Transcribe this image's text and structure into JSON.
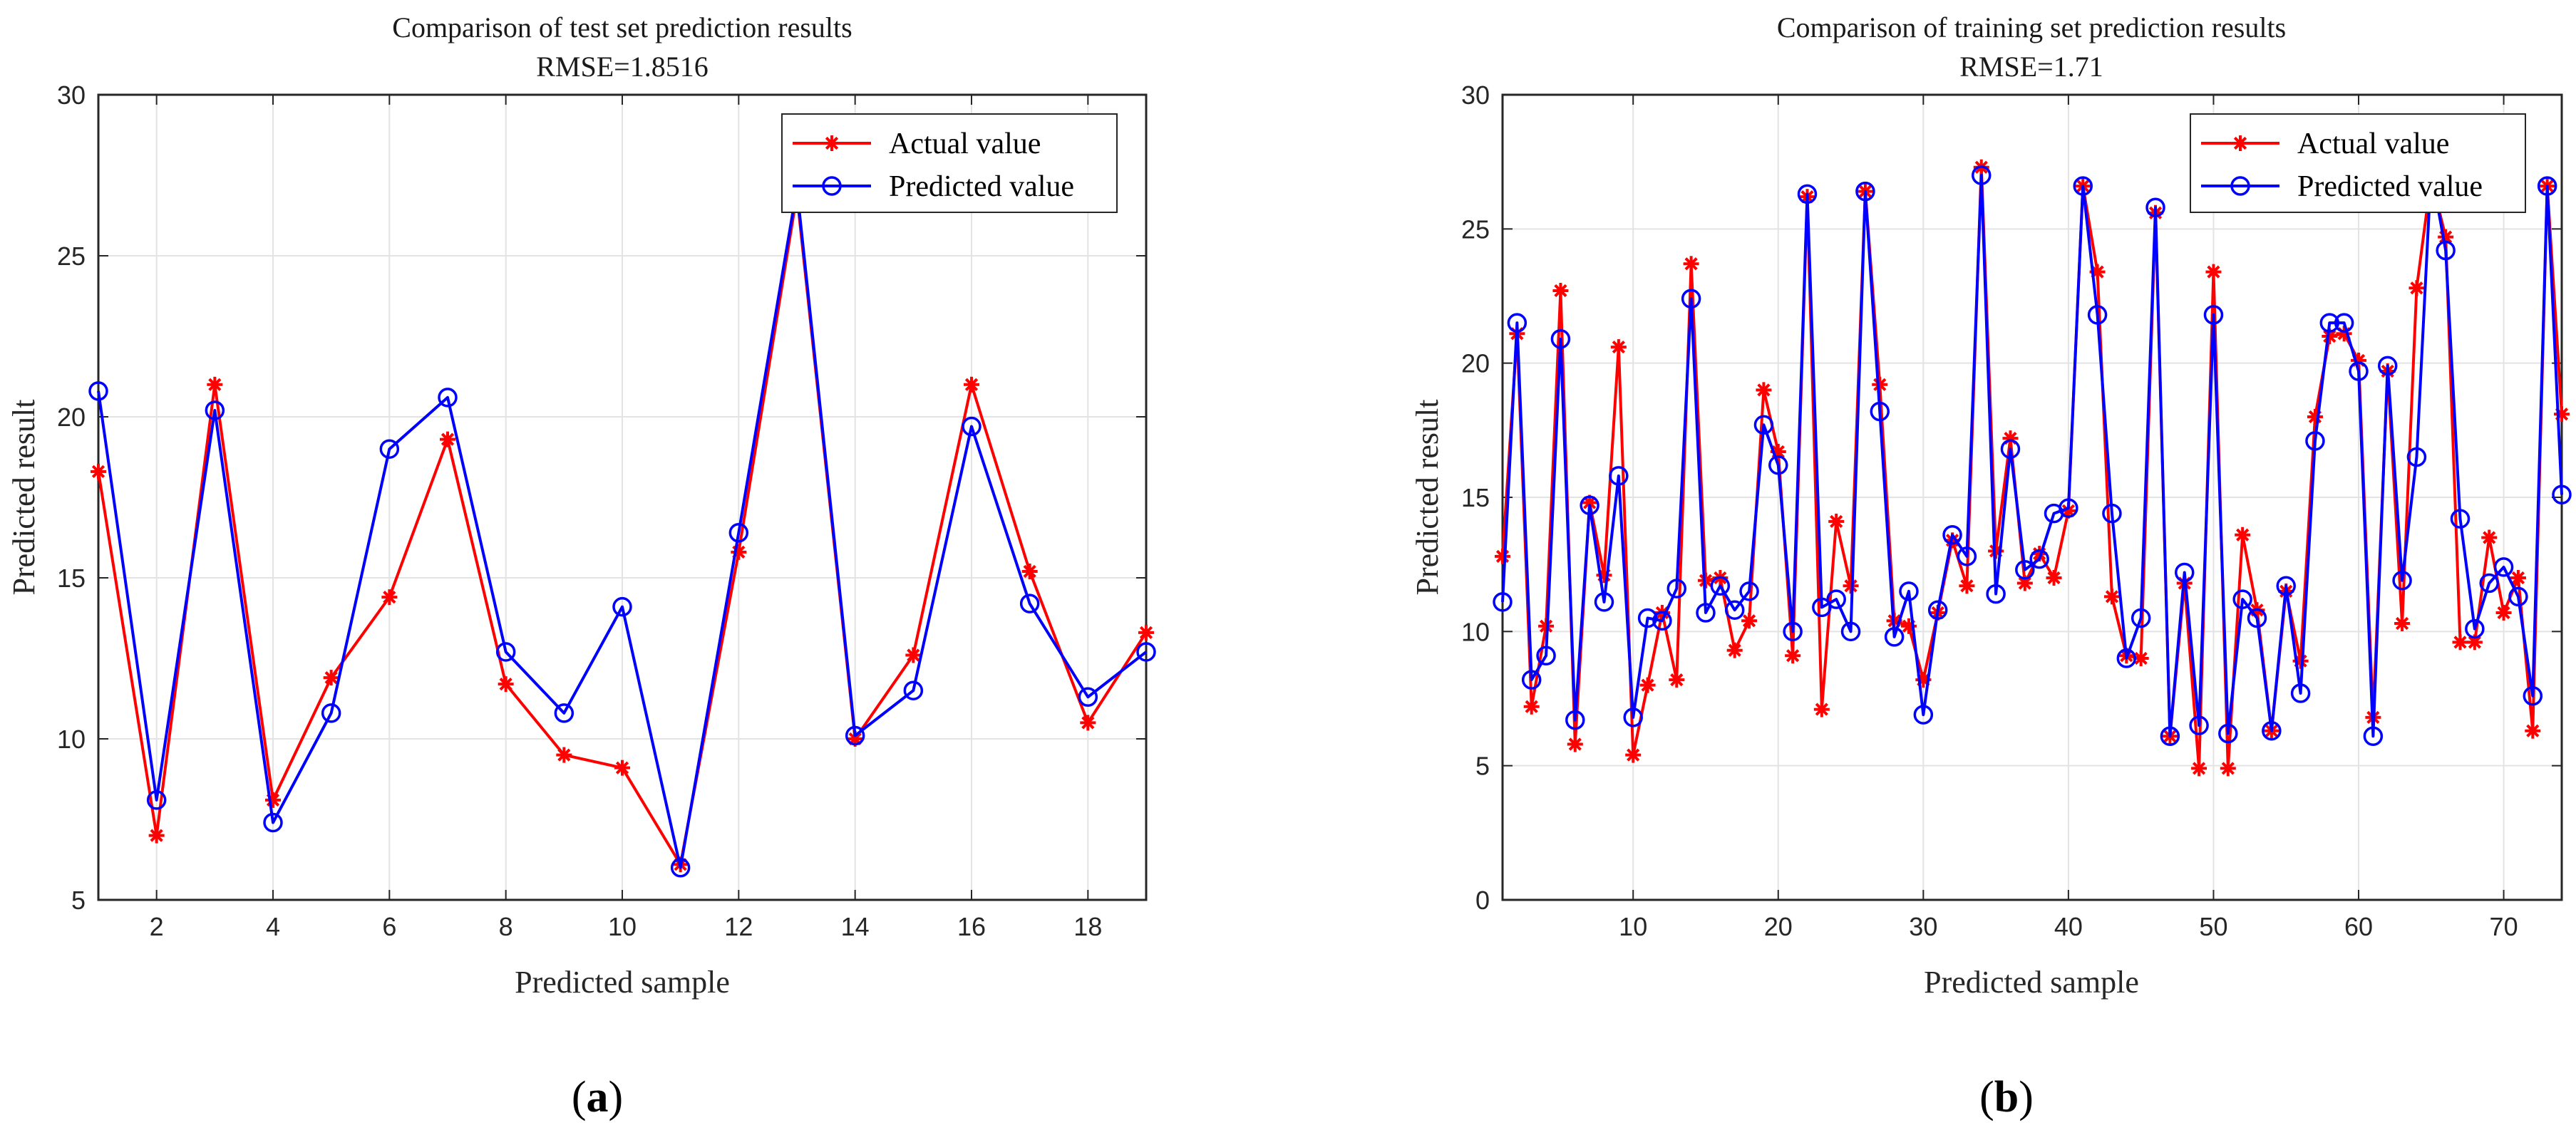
{
  "colors": {
    "actual": "#ff0000",
    "predicted": "#0000ff",
    "grid": "#e3e3e3",
    "axis": "#262626"
  },
  "legend": {
    "actual_label": "Actual value",
    "predicted_label": "Predicted value",
    "placement": "top-right"
  },
  "captions": [
    "a",
    "b"
  ],
  "chart_data": [
    {
      "type": "line",
      "title": "Comparison of test set prediction results",
      "subtitle": "RMSE=1.8516",
      "xlabel": "Predicted sample",
      "ylabel": "Predicted result",
      "xlim": [
        1,
        19
      ],
      "ylim": [
        5,
        30
      ],
      "xticks": [
        2,
        4,
        6,
        8,
        10,
        12,
        14,
        16,
        18
      ],
      "yticks": [
        5,
        10,
        15,
        20,
        25,
        30
      ],
      "grid": true,
      "x": [
        1,
        2,
        3,
        4,
        5,
        6,
        7,
        8,
        9,
        10,
        11,
        12,
        13,
        14,
        15,
        16,
        17,
        18,
        19
      ],
      "series": [
        {
          "name": "Actual value",
          "marker": "asterisk",
          "values": [
            18.3,
            7.0,
            21.0,
            8.1,
            11.9,
            14.4,
            19.3,
            11.7,
            9.5,
            9.1,
            6.1,
            15.8,
            26.9,
            10.0,
            12.6,
            21.0,
            15.2,
            10.5,
            13.3
          ]
        },
        {
          "name": "Predicted value",
          "marker": "circle",
          "values": [
            20.8,
            8.1,
            20.2,
            7.4,
            10.8,
            19.0,
            20.6,
            12.7,
            10.8,
            14.1,
            6.0,
            16.4,
            27.1,
            10.1,
            11.5,
            19.7,
            14.2,
            11.3,
            12.7
          ]
        }
      ]
    },
    {
      "type": "line",
      "title": "Comparison of training set prediction results",
      "subtitle": "RMSE=1.71",
      "xlabel": "Predicted sample",
      "ylabel": "Predicted result",
      "xlim": [
        1,
        74
      ],
      "ylim": [
        0,
        30
      ],
      "xticks": [
        10,
        20,
        30,
        40,
        50,
        60,
        70
      ],
      "yticks": [
        0,
        5,
        10,
        15,
        20,
        25,
        30
      ],
      "grid": true,
      "x": [
        1,
        2,
        3,
        4,
        5,
        6,
        7,
        8,
        9,
        10,
        11,
        12,
        13,
        14,
        15,
        16,
        17,
        18,
        19,
        20,
        21,
        22,
        23,
        24,
        25,
        26,
        27,
        28,
        29,
        30,
        31,
        32,
        33,
        34,
        35,
        36,
        37,
        38,
        39,
        40,
        41,
        42,
        43,
        44,
        45,
        46,
        47,
        48,
        49,
        50,
        51,
        52,
        53,
        54,
        55,
        56,
        57,
        58,
        59,
        60,
        61,
        62,
        63,
        64,
        65,
        66,
        67,
        68,
        69,
        70,
        71,
        72,
        73,
        74
      ],
      "series": [
        {
          "name": "Actual value",
          "marker": "asterisk",
          "values": [
            12.8,
            21.1,
            7.2,
            10.2,
            22.7,
            5.8,
            14.8,
            12.1,
            20.6,
            5.4,
            8.0,
            10.7,
            8.2,
            23.7,
            11.9,
            12.0,
            9.3,
            10.4,
            19.0,
            16.7,
            9.1,
            26.2,
            7.1,
            14.1,
            11.7,
            26.4,
            19.2,
            10.4,
            10.2,
            8.2,
            10.7,
            13.4,
            11.7,
            27.3,
            13.0,
            17.2,
            11.8,
            12.9,
            12.0,
            14.5,
            26.6,
            23.4,
            11.3,
            9.1,
            9.0,
            25.6,
            6.1,
            11.8,
            4.9,
            23.4,
            4.9,
            13.6,
            10.8,
            6.3,
            11.5,
            8.9,
            18.0,
            21.0,
            21.1,
            20.1,
            6.8,
            19.7,
            10.3,
            22.8,
            26.9,
            24.7,
            9.6,
            9.6,
            13.5,
            10.7,
            12.0,
            6.3,
            26.6,
            18.1
          ]
        },
        {
          "name": "Predicted value",
          "marker": "circle",
          "values": [
            11.1,
            21.5,
            8.2,
            9.1,
            20.9,
            6.7,
            14.7,
            11.1,
            15.8,
            6.8,
            10.5,
            10.4,
            11.6,
            22.4,
            10.7,
            11.7,
            10.8,
            11.5,
            17.7,
            16.2,
            10.0,
            26.3,
            10.9,
            11.2,
            10.0,
            26.4,
            18.2,
            9.8,
            11.5,
            6.9,
            10.8,
            13.6,
            12.8,
            27.0,
            11.4,
            16.8,
            12.3,
            12.7,
            14.4,
            14.6,
            26.6,
            21.8,
            14.4,
            9.0,
            10.5,
            25.8,
            6.1,
            12.2,
            6.5,
            21.8,
            6.2,
            11.2,
            10.5,
            6.3,
            11.7,
            7.7,
            17.1,
            21.5,
            21.5,
            19.7,
            6.1,
            19.9,
            11.9,
            16.5,
            27.2,
            24.2,
            14.2,
            10.1,
            11.8,
            12.4,
            11.3,
            7.6,
            26.6,
            15.1
          ]
        }
      ]
    }
  ]
}
